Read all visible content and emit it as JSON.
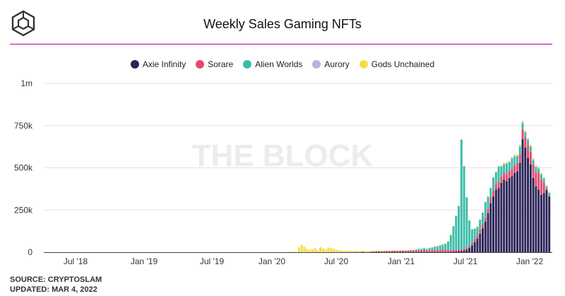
{
  "header": {
    "title": "Weekly Sales Gaming NFTs"
  },
  "watermark": "THE BLOCK",
  "footer": {
    "source": "SOURCE: CRYPTOSLAM",
    "updated": "UPDATED: MAR 4, 2022"
  },
  "chart_data": {
    "type": "bar",
    "stacked": true,
    "title": "Weekly Sales Gaming NFTs",
    "x_tick_labels": [
      "Jul '18",
      "Jan '19",
      "Jul '19",
      "Jan '20",
      "Jul '20",
      "Jan '21",
      "Jul '21",
      "Jan '22"
    ],
    "y_tick_labels": [
      "0",
      "250k",
      "500k",
      "750k",
      "1m"
    ],
    "ylim": [
      0,
      1000000
    ],
    "grid": true,
    "legend_position": "top-center",
    "n_weeks": 190,
    "series": [
      {
        "name": "Axie Infinity",
        "color": "#2b2459",
        "values": [
          0,
          0,
          0,
          0,
          0,
          0,
          0,
          0,
          0,
          0,
          0,
          0,
          0,
          0,
          0,
          0,
          0,
          0,
          0,
          0,
          0,
          0,
          0,
          0,
          0,
          0,
          0,
          0,
          0,
          0,
          0,
          0,
          0,
          0,
          0,
          0,
          0,
          0,
          0,
          0,
          0,
          0,
          0,
          0,
          0,
          0,
          0,
          0,
          0,
          0,
          0,
          0,
          0,
          0,
          0,
          0,
          0,
          0,
          0,
          0,
          0,
          0,
          0,
          0,
          0,
          0,
          0,
          0,
          0,
          0,
          0,
          0,
          0,
          0,
          0,
          0,
          0,
          0,
          0,
          0,
          0,
          0,
          0,
          0,
          0,
          0,
          0,
          0,
          0,
          0,
          0,
          0,
          0,
          0,
          0,
          0,
          0,
          0,
          0,
          0,
          0,
          0,
          0,
          0,
          0,
          0,
          0,
          0,
          0,
          0,
          0,
          0,
          0,
          0,
          1000,
          1000,
          1000,
          1000,
          1000,
          2000,
          1000,
          1000,
          2000,
          2000,
          2000,
          2000,
          2000,
          2000,
          2000,
          3000,
          3000,
          3000,
          3000,
          3000,
          3000,
          3000,
          3000,
          3000,
          3000,
          3000,
          3000,
          3000,
          3000,
          3000,
          3000,
          3000,
          3000,
          3000,
          3000,
          3000,
          3000,
          3000,
          3000,
          4000,
          5000,
          6000,
          8000,
          10000,
          15000,
          25000,
          40000,
          60000,
          80000,
          110000,
          140000,
          180000,
          230000,
          290000,
          330000,
          370000,
          380000,
          410000,
          430000,
          420000,
          440000,
          450000,
          470000,
          480000,
          530000,
          670000,
          620000,
          560000,
          520000,
          440000,
          390000,
          370000,
          340000,
          350000,
          370000,
          330000,
          300000,
          320000,
          150000
        ]
      },
      {
        "name": "Sorare",
        "color": "#e9476b",
        "values": [
          0,
          0,
          0,
          0,
          0,
          0,
          0,
          0,
          0,
          0,
          0,
          0,
          0,
          0,
          0,
          0,
          0,
          0,
          0,
          0,
          0,
          0,
          0,
          0,
          0,
          0,
          0,
          0,
          0,
          0,
          0,
          0,
          0,
          0,
          0,
          0,
          0,
          0,
          0,
          0,
          0,
          0,
          0,
          0,
          0,
          0,
          0,
          0,
          0,
          0,
          0,
          0,
          0,
          0,
          0,
          0,
          0,
          0,
          0,
          0,
          0,
          0,
          0,
          0,
          0,
          0,
          0,
          0,
          0,
          0,
          0,
          0,
          0,
          0,
          0,
          0,
          0,
          0,
          0,
          0,
          0,
          0,
          0,
          0,
          0,
          0,
          0,
          0,
          0,
          0,
          0,
          0,
          0,
          0,
          0,
          0,
          0,
          0,
          0,
          0,
          0,
          0,
          0,
          0,
          0,
          0,
          0,
          0,
          0,
          0,
          0,
          0,
          0,
          0,
          0,
          0,
          0,
          0,
          0,
          0,
          0,
          0,
          0,
          2000,
          3000,
          4000,
          3000,
          4000,
          5000,
          4000,
          5000,
          6000,
          5000,
          6000,
          7000,
          6000,
          7000,
          8000,
          6000,
          7000,
          8000,
          9000,
          10000,
          8000,
          9000,
          10000,
          11000,
          10000,
          12000,
          14000,
          12000,
          10000,
          8000,
          9000,
          10000,
          8000,
          8000,
          9000,
          10000,
          12000,
          15000,
          18000,
          20000,
          22000,
          24000,
          26000,
          28000,
          30000,
          32000,
          34000,
          36000,
          38000,
          40000,
          44000,
          42000,
          44000,
          46000,
          48000,
          50000,
          55000,
          60000,
          70000,
          75000,
          80000,
          85000,
          100000,
          90000,
          60000
        ]
      },
      {
        "name": "Alien Worlds",
        "color": "#3bbcaa",
        "values": [
          0,
          0,
          0,
          0,
          0,
          0,
          0,
          0,
          0,
          0,
          0,
          0,
          0,
          0,
          0,
          0,
          0,
          0,
          0,
          0,
          0,
          0,
          0,
          0,
          0,
          0,
          0,
          0,
          0,
          0,
          0,
          0,
          0,
          0,
          0,
          0,
          0,
          0,
          0,
          0,
          0,
          0,
          0,
          0,
          0,
          0,
          0,
          0,
          0,
          0,
          0,
          0,
          0,
          0,
          0,
          0,
          0,
          0,
          0,
          0,
          0,
          0,
          0,
          0,
          0,
          0,
          0,
          0,
          0,
          0,
          0,
          0,
          0,
          0,
          0,
          0,
          0,
          0,
          0,
          0,
          0,
          0,
          0,
          0,
          0,
          0,
          0,
          0,
          0,
          0,
          0,
          0,
          0,
          0,
          0,
          0,
          0,
          0,
          0,
          0,
          0,
          0,
          0,
          0,
          0,
          0,
          0,
          0,
          0,
          0,
          0,
          0,
          0,
          0,
          0,
          0,
          0,
          0,
          0,
          0,
          0,
          0,
          0,
          0,
          0,
          0,
          0,
          0,
          0,
          0,
          0,
          0,
          0,
          0,
          0,
          0,
          0,
          2000,
          4000,
          6000,
          8000,
          8000,
          10000,
          9000,
          12000,
          15000,
          18000,
          22000,
          25000,
          28000,
          35000,
          50000,
          90000,
          140000,
          200000,
          260000,
          650000,
          490000,
          300000,
          150000,
          80000,
          60000,
          50000,
          60000,
          70000,
          90000,
          70000,
          60000,
          80000,
          70000,
          90000,
          60000,
          50000,
          60000,
          50000,
          60000,
          50000,
          40000,
          45000,
          40000,
          30000,
          35000,
          30000,
          25000,
          30000,
          25000,
          30000,
          25000,
          20000,
          20000,
          25000,
          20000,
          15000,
          20000,
          18000,
          15000,
          10000
        ]
      },
      {
        "name": "Aurory",
        "color": "#b9b1e0",
        "values": [
          0,
          0,
          0,
          0,
          0,
          0,
          0,
          0,
          0,
          0,
          0,
          0,
          0,
          0,
          0,
          0,
          0,
          0,
          0,
          0,
          0,
          0,
          0,
          0,
          0,
          0,
          0,
          0,
          0,
          0,
          0,
          0,
          0,
          0,
          0,
          0,
          0,
          0,
          0,
          0,
          0,
          0,
          0,
          0,
          0,
          0,
          0,
          0,
          0,
          0,
          0,
          0,
          0,
          0,
          0,
          0,
          0,
          0,
          0,
          0,
          0,
          0,
          0,
          0,
          0,
          0,
          0,
          0,
          0,
          0,
          0,
          0,
          0,
          0,
          0,
          0,
          0,
          0,
          0,
          0,
          0,
          0,
          0,
          0,
          0,
          0,
          0,
          0,
          0,
          0,
          0,
          0,
          0,
          0,
          0,
          0,
          0,
          0,
          0,
          0,
          0,
          0,
          0,
          0,
          0,
          0,
          0,
          0,
          0,
          0,
          0,
          0,
          0,
          0,
          0,
          0,
          0,
          0,
          0,
          0,
          0,
          0,
          0,
          0,
          0,
          0,
          0,
          0,
          0,
          0,
          0,
          0,
          0,
          0,
          0,
          0,
          0,
          0,
          0,
          0,
          0,
          0,
          0,
          0,
          0,
          0,
          0,
          0,
          0,
          0,
          0,
          0,
          0,
          0,
          0,
          0,
          0,
          0,
          0,
          0,
          0,
          0,
          0,
          0,
          0,
          0,
          0,
          0,
          0,
          0,
          0,
          3000,
          4000,
          5000,
          4000,
          5000,
          6000,
          5000,
          6000,
          5000,
          4000,
          5000,
          6000,
          5000,
          4000,
          5000,
          4000,
          3000,
          4000,
          3000
        ]
      },
      {
        "name": "Gods Unchained",
        "color": "#f5de4a",
        "values": [
          0,
          0,
          0,
          0,
          0,
          0,
          0,
          0,
          0,
          0,
          0,
          0,
          0,
          0,
          0,
          0,
          0,
          0,
          0,
          0,
          0,
          0,
          0,
          0,
          0,
          0,
          0,
          0,
          0,
          0,
          0,
          0,
          0,
          0,
          0,
          0,
          0,
          0,
          0,
          0,
          0,
          0,
          0,
          0,
          0,
          0,
          0,
          0,
          0,
          0,
          0,
          0,
          0,
          0,
          0,
          0,
          0,
          0,
          0,
          0,
          0,
          0,
          0,
          0,
          0,
          0,
          0,
          0,
          0,
          0,
          0,
          0,
          0,
          0,
          0,
          0,
          0,
          0,
          0,
          0,
          0,
          0,
          0,
          0,
          0,
          0,
          0,
          1000,
          1000,
          1000,
          1000,
          2000,
          3000,
          2000,
          2000,
          30000,
          45000,
          32000,
          20000,
          15000,
          18000,
          25000,
          12000,
          30000,
          22000,
          18000,
          28000,
          25000,
          20000,
          15000,
          12000,
          10000,
          8000,
          10000,
          8000,
          6000,
          9000,
          7000,
          5000,
          6000,
          5000,
          4000,
          5000,
          4000,
          3000,
          4000,
          3000,
          3000,
          4000,
          3000,
          2000,
          3000,
          2000,
          2000,
          3000,
          2000,
          2000,
          2000,
          2000,
          2000,
          3000,
          2000,
          2000,
          2000,
          2000,
          2000,
          3000,
          2000,
          3000,
          3000,
          2000,
          3000,
          3000,
          3000,
          3000,
          2000,
          3000,
          3000,
          3000,
          4000,
          3000,
          4000,
          3000,
          3000,
          3000,
          3000,
          4000,
          3000,
          4000,
          4000,
          5000,
          4000,
          5000,
          5000,
          6000,
          5000,
          6000,
          5000,
          6000,
          7000,
          6000,
          6000,
          5000,
          6000,
          5000,
          6000,
          6000,
          5000,
          5000,
          5000,
          5000,
          4000,
          4000,
          4000,
          4000,
          3000,
          3000,
          3000,
          3000,
          2000,
          2000,
          2000,
          2000,
          2000,
          2000,
          2000
        ]
      }
    ]
  }
}
